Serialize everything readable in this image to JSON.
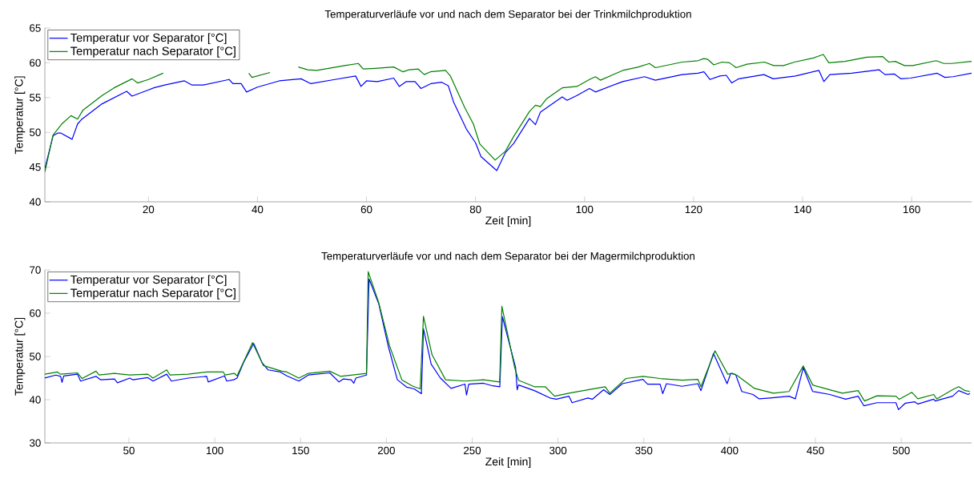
{
  "chart_data": [
    {
      "type": "line",
      "title": "Temperaturverläufe vor und nach dem Separator bei der Trinkmilchproduktion",
      "xlabel": "Zeit [min]",
      "ylabel": "Temperatur [°C]",
      "xlim": [
        1,
        171
      ],
      "ylim": [
        40,
        65
      ],
      "xticks": [
        20,
        40,
        60,
        80,
        100,
        120,
        140,
        160
      ],
      "yticks": [
        40,
        45,
        50,
        55,
        60,
        65
      ],
      "legend": "top left",
      "grid": false,
      "series": [
        {
          "name": "Temperatur vor Separator [°C]",
          "color": "#0000ff",
          "x": [
            1,
            2.5,
            3.4,
            3.9,
            6,
            7,
            7.8,
            11.5,
            16,
            17,
            20,
            21,
            23,
            26.6,
            28,
            30,
            34.8,
            35.5,
            37,
            38,
            40,
            44,
            48,
            49.8,
            54.2,
            58,
            59,
            60,
            62,
            65,
            66,
            67.3,
            68.9,
            70,
            71.8,
            73.8,
            75,
            76,
            78.3,
            80,
            81,
            83.9,
            85.5,
            87,
            89.9,
            91,
            91.9,
            95.9,
            96.8,
            98.6,
            100.9,
            102,
            107,
            111,
            113,
            117.9,
            120.8,
            121.9,
            123,
            124.8,
            126,
            127,
            128.3,
            132.9,
            134.6,
            138.7,
            143,
            143.9,
            145,
            149,
            154,
            155.1,
            156.8,
            158,
            159.8,
            164.7,
            166.1,
            167.6,
            171
          ],
          "values": [
            44.8,
            49.5,
            49.9,
            49.9,
            49.0,
            51.2,
            51.9,
            54.1,
            55.9,
            55.2,
            56.1,
            56.4,
            56.8,
            57.4,
            56.8,
            56.8,
            57.6,
            57.0,
            57.0,
            55.8,
            56.5,
            57.4,
            57.7,
            57.0,
            57.6,
            58.1,
            56.6,
            57.4,
            57.3,
            57.8,
            56.6,
            57.3,
            57.3,
            56.3,
            57.0,
            57.2,
            56.7,
            54.3,
            50.5,
            48.5,
            46.5,
            44.5,
            47.1,
            48.4,
            52.0,
            51.1,
            52.9,
            55.1,
            54.6,
            55.3,
            56.3,
            55.8,
            57.3,
            58.0,
            57.5,
            58.3,
            58.5,
            58.7,
            57.6,
            58.1,
            58.2,
            57.1,
            57.7,
            58.3,
            57.7,
            58.1,
            58.9,
            57.3,
            58.3,
            58.5,
            59.0,
            58.3,
            58.4,
            57.7,
            57.8,
            58.5,
            57.9,
            58.0,
            58.5
          ]
        },
        {
          "name": "Temperatur nach Separator [°C]",
          "color": "#008000",
          "x": [
            1,
            2.5,
            4.1,
            5.8,
            7,
            8,
            11.5,
            13.7,
            17,
            18,
            20,
            22.7,
            30,
            38.4,
            39,
            42.3,
            45,
            47.5,
            49.2,
            50.9,
            56,
            58.5,
            59.4,
            61.6,
            65,
            66.7,
            67.8,
            69.5,
            70.6,
            71.7,
            74.5,
            75.4,
            78,
            79.6,
            80.8,
            83.6,
            85.5,
            87,
            89.9,
            91,
            91.9,
            93,
            95.9,
            98.6,
            100.9,
            102,
            102.9,
            107,
            109.9,
            111.9,
            113,
            117.9,
            120.8,
            121.9,
            122.6,
            123.7,
            125.2,
            126.6,
            127.8,
            129.8,
            133,
            134.7,
            136.5,
            138.5,
            142,
            143.8,
            144.8,
            147.8,
            151.8,
            154.7,
            155.8,
            157,
            158.7,
            160.2,
            164.5,
            165.9,
            167.3,
            171
          ],
          "values": [
            44.3,
            49.6,
            51.2,
            52.4,
            51.9,
            53.2,
            55.3,
            56.4,
            57.7,
            57.1,
            57.6,
            58.5,
            null,
            58.5,
            57.9,
            58.6,
            null,
            59.4,
            59.0,
            58.9,
            59.6,
            59.9,
            59.1,
            59.2,
            59.4,
            58.7,
            59.0,
            59.1,
            58.3,
            58.7,
            58.9,
            58.1,
            53.6,
            51.2,
            48.3,
            46.0,
            47.3,
            49.4,
            53.0,
            53.9,
            53.7,
            54.8,
            56.4,
            56.6,
            57.6,
            58.0,
            57.5,
            58.9,
            59.4,
            59.9,
            59.3,
            60.1,
            60.3,
            60.6,
            60.5,
            59.7,
            60.1,
            60.0,
            59.3,
            59.8,
            60.1,
            59.6,
            59.6,
            60.1,
            60.7,
            61.2,
            60.0,
            60.2,
            60.8,
            60.9,
            60.1,
            60.2,
            59.6,
            59.6,
            60.3,
            59.9,
            59.9,
            60.2
          ]
        }
      ]
    },
    {
      "type": "line",
      "title": "Temperaturverläufe vor und nach dem Separator bei der Magermilchproduktion",
      "xlabel": "Zeit [min]",
      "ylabel": "Temperatur [°C]",
      "xlim": [
        1,
        541
      ],
      "ylim": [
        30,
        70
      ],
      "xticks": [
        50,
        100,
        150,
        200,
        250,
        300,
        350,
        400,
        450,
        500
      ],
      "yticks": [
        30,
        40,
        50,
        60,
        70
      ],
      "legend": "top left",
      "grid": false,
      "series": [
        {
          "name": "Temperatur vor Separator [°C]",
          "color": "#0000ff",
          "x": [
            1,
            7.4,
            10.2,
            11,
            12,
            20,
            21.8,
            30.8,
            33.5,
            41.5,
            43.3,
            50.5,
            52.3,
            61,
            64,
            72,
            74.7,
            84.5,
            95.3,
            96.2,
            105.7,
            107,
            111,
            113,
            116.8,
            122.7,
            127.5,
            131,
            138.2,
            142,
            149,
            154.5,
            167,
            172.4,
            175,
            179.5,
            181,
            182.2,
            188.4,
            189.9,
            195.6,
            201,
            206.4,
            211.8,
            216.2,
            220.4,
            221.6,
            226.1,
            231.5,
            237.7,
            245.8,
            246.7,
            248,
            256.6,
            262,
            266.1,
            267.6,
            275.3,
            276.2,
            277,
            286.2,
            295.3,
            299,
            306.4,
            308.2,
            317.4,
            320,
            326.6,
            330.2,
            337.5,
            349.5,
            352.2,
            359.5,
            361,
            363.2,
            372.3,
            381.5,
            383.3,
            390.6,
            398.5,
            400.7,
            403.5,
            407.1,
            413.6,
            417.2,
            423.6,
            434.6,
            438.3,
            442.9,
            448.4,
            458.4,
            467.6,
            474.9,
            478.2,
            485.9,
            496.9,
            498.4,
            502.4,
            507.9,
            509.7,
            518.9,
            519.8,
            529.9,
            533.5,
            539,
            540
          ],
          "values": [
            45.0,
            45.7,
            45.4,
            44.0,
            45.5,
            45.9,
            44.3,
            45.4,
            44.6,
            44.8,
            43.9,
            45.0,
            44.6,
            45.1,
            44.3,
            45.9,
            44.3,
            45.0,
            45.4,
            44.1,
            45.5,
            44.3,
            44.6,
            45.0,
            48.6,
            53.0,
            48.6,
            46.9,
            46.4,
            45.5,
            44.3,
            45.7,
            46.2,
            44.1,
            44.8,
            44.6,
            43.8,
            45.0,
            45.7,
            67.9,
            62.1,
            52.5,
            44.6,
            42.9,
            42.5,
            41.4,
            56.4,
            48.2,
            45.0,
            42.6,
            43.6,
            41.1,
            43.6,
            43.8,
            43.2,
            43.0,
            59.2,
            47.4,
            42.3,
            43.4,
            42.1,
            40.4,
            40.1,
            40.8,
            39.3,
            40.4,
            40.1,
            42.3,
            41.2,
            43.7,
            44.7,
            43.6,
            43.6,
            41.4,
            43.7,
            43.1,
            43.7,
            42.1,
            50.7,
            43.7,
            46.1,
            45.8,
            41.9,
            41.2,
            40.2,
            40.4,
            40.8,
            40.2,
            47.4,
            41.9,
            41.2,
            40.1,
            40.8,
            38.6,
            39.3,
            39.3,
            37.7,
            39.2,
            39.5,
            39.0,
            40.1,
            39.7,
            40.8,
            42.1,
            41.2,
            41.5
          ]
        },
        {
          "name": "Temperatur nach Separator [°C]",
          "color": "#008000",
          "x": [
            1,
            8.3,
            10,
            20,
            22.7,
            30.8,
            32.6,
            41.5,
            50.5,
            61,
            64,
            72,
            73.9,
            84.5,
            95.3,
            105,
            106,
            111.3,
            113,
            122,
            128.3,
            139,
            142,
            149,
            154.5,
            167,
            173.2,
            188.4,
            189.4,
            195.5,
            201.8,
            209,
            215,
            219.7,
            221.6,
            226.6,
            234.5,
            245.8,
            256.6,
            266,
            267.3,
            274.7,
            277,
            286.2,
            292.6,
            298,
            306.4,
            317.4,
            327.5,
            330.2,
            339.6,
            349.5,
            359.5,
            372.3,
            381.5,
            383.3,
            391.5,
            398.9,
            401.6,
            404.4,
            414.5,
            425.5,
            434.6,
            442.9,
            448.4,
            458.4,
            465.7,
            474.9,
            478.6,
            485.9,
            496.9,
            498.8,
            506.2,
            509.7,
            518.9,
            520.7,
            529.9,
            533.5,
            537.2,
            540
          ],
          "values": [
            45.9,
            46.4,
            45.9,
            46.2,
            44.9,
            46.6,
            45.7,
            46.1,
            45.7,
            45.9,
            45.0,
            46.9,
            45.7,
            45.9,
            46.4,
            46.4,
            45.7,
            46.1,
            45.5,
            53.2,
            47.9,
            46.6,
            46.4,
            45.0,
            46.1,
            46.6,
            45.4,
            46.1,
            69.6,
            62.5,
            52.5,
            44.6,
            43.2,
            42.5,
            59.3,
            50.4,
            44.6,
            44.3,
            44.6,
            44.1,
            61.6,
            47.5,
            44.5,
            43.0,
            43.0,
            40.8,
            41.5,
            42.3,
            43.0,
            41.5,
            44.9,
            45.4,
            44.9,
            44.5,
            44.7,
            43.0,
            51.3,
            45.9,
            46.1,
            45.6,
            42.6,
            41.5,
            41.9,
            47.8,
            43.4,
            42.3,
            41.5,
            42.1,
            39.7,
            40.9,
            40.8,
            40.1,
            41.7,
            40.2,
            41.2,
            40.2,
            42.3,
            43.0,
            42.1,
            41.9
          ]
        }
      ]
    }
  ]
}
